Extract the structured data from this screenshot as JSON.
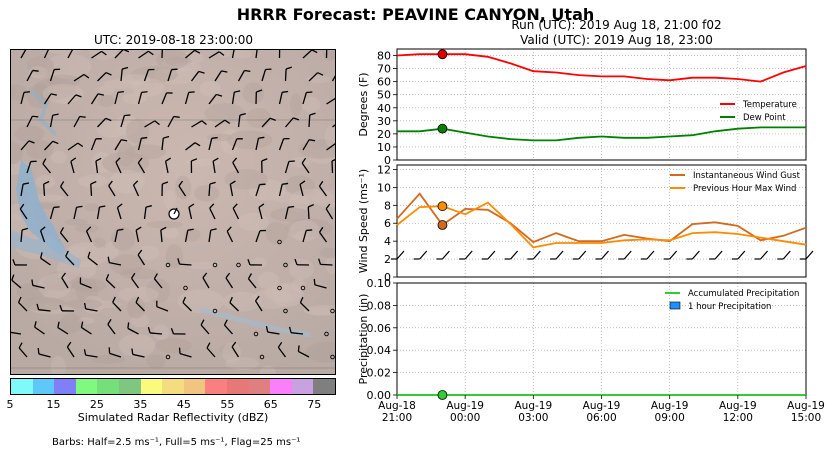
{
  "header": {
    "title": "HRRR Forecast: PEAVINE CANYON, Utah",
    "run": "Run (UTC): 2019 Aug 18, 21:00 f02",
    "valid": "Valid (UTC): 2019 Aug 18, 23:00"
  },
  "map": {
    "title": "UTC: 2019-08-18 23:00:00",
    "colorbar": {
      "label": "Simulated Radar Reflectivity (dBZ)",
      "ticks": [
        "5",
        "15",
        "25",
        "35",
        "45",
        "55",
        "65",
        "75"
      ],
      "colors": [
        "#7ffafa",
        "#5ec8fa",
        "#7f7ffa",
        "#7ffa7f",
        "#75e07a",
        "#7fc77f",
        "#fafa7f",
        "#f4dc7f",
        "#f1c47f",
        "#fa7f7f",
        "#e87878",
        "#e07f7f",
        "#fa7ffa",
        "#c9a0e0",
        "#7f7f7f"
      ]
    },
    "barb_note": "Barbs: Half=2.5 ms⁻¹, Full=5 ms⁻¹, Flag=25 ms⁻¹"
  },
  "chart_data": [
    {
      "type": "line",
      "title": "",
      "xlabel": "",
      "ylabel": "Degrees (F)",
      "ylim": [
        0,
        85
      ],
      "yticks": [
        0,
        10,
        20,
        30,
        40,
        50,
        60,
        70,
        80
      ],
      "legend": "right",
      "series": [
        {
          "name": "Temperature",
          "color": "#ff0000",
          "x": [
            -2,
            -1,
            0,
            1,
            2,
            3,
            4,
            5,
            6,
            7,
            8,
            9,
            10,
            11,
            12,
            13,
            14,
            15,
            16
          ],
          "values": [
            80,
            81,
            81,
            81,
            79,
            74,
            68,
            67,
            65,
            64,
            64,
            62,
            61,
            63,
            63,
            62,
            60,
            67,
            72
          ]
        },
        {
          "name": "Dew Point",
          "color": "#008000",
          "x": [
            -2,
            -1,
            0,
            1,
            2,
            3,
            4,
            5,
            6,
            7,
            8,
            9,
            10,
            11,
            12,
            13,
            14,
            15,
            16
          ],
          "values": [
            22,
            22,
            24,
            21,
            18,
            16,
            15,
            15,
            17,
            18,
            17,
            17,
            18,
            19,
            22,
            24,
            25,
            25,
            25
          ]
        }
      ],
      "marker": {
        "x": 0,
        "values": [
          81,
          24
        ]
      }
    },
    {
      "type": "line",
      "title": "",
      "ylabel": "Wind Speed (ms⁻¹)",
      "ylim": [
        0,
        12.5
      ],
      "yticks": [
        0,
        2,
        4,
        6,
        8,
        10,
        12
      ],
      "legend": "top-right",
      "series": [
        {
          "name": "Instantaneous Wind Gust",
          "color": "#d2691e",
          "x": [
            -2,
            -1,
            0,
            1,
            2,
            3,
            4,
            5,
            6,
            7,
            8,
            9,
            10,
            11,
            12,
            13,
            14,
            15,
            16
          ],
          "values": [
            6.5,
            9.3,
            5.8,
            7.6,
            7.5,
            6.0,
            3.9,
            4.9,
            4.0,
            4.0,
            4.7,
            4.3,
            4.0,
            5.9,
            6.1,
            5.7,
            4.1,
            4.6,
            5.5
          ]
        },
        {
          "name": "Previous Hour Max Wind",
          "color": "#ff8c00",
          "x": [
            -2,
            -1,
            0,
            1,
            2,
            3,
            4,
            5,
            6,
            7,
            8,
            9,
            10,
            11,
            12,
            13,
            14,
            15,
            16
          ],
          "values": [
            5.8,
            7.8,
            7.9,
            7.0,
            8.3,
            5.9,
            3.3,
            3.8,
            3.8,
            3.8,
            4.1,
            4.2,
            4.1,
            4.9,
            5.0,
            4.8,
            4.4,
            4.0,
            3.6
          ]
        }
      ],
      "marker": {
        "x": 0,
        "values": [
          5.8,
          7.9
        ]
      }
    },
    {
      "type": "bar",
      "title": "",
      "ylabel": "Precipitation (in)",
      "ylim": [
        0,
        0.1
      ],
      "yticks": [
        "0.00",
        "0.02",
        "0.04",
        "0.06",
        "0.08",
        "0.10"
      ],
      "xticks": [
        {
          "x": -2,
          "line1": "Aug-18",
          "line2": "21:00"
        },
        {
          "x": 1,
          "line1": "Aug-19",
          "line2": "00:00"
        },
        {
          "x": 4,
          "line1": "Aug-19",
          "line2": "03:00"
        },
        {
          "x": 7,
          "line1": "Aug-19",
          "line2": "06:00"
        },
        {
          "x": 10,
          "line1": "Aug-19",
          "line2": "09:00"
        },
        {
          "x": 13,
          "line1": "Aug-19",
          "line2": "12:00"
        },
        {
          "x": 16,
          "line1": "Aug-19",
          "line2": "15:00"
        }
      ],
      "legend": "top-right",
      "series": [
        {
          "name": "Accumulated Precipitation",
          "color": "#33cc33",
          "values": [
            0,
            0,
            0,
            0,
            0,
            0,
            0,
            0,
            0,
            0,
            0,
            0,
            0,
            0,
            0,
            0,
            0,
            0,
            0
          ]
        },
        {
          "name": "1 hour Precipitation",
          "color": "#1e90ff",
          "values": [
            0,
            0,
            0,
            0,
            0,
            0,
            0,
            0,
            0,
            0,
            0,
            0,
            0,
            0,
            0,
            0,
            0,
            0,
            0
          ]
        }
      ],
      "marker": {
        "x": 0,
        "values": [
          0
        ]
      }
    }
  ]
}
